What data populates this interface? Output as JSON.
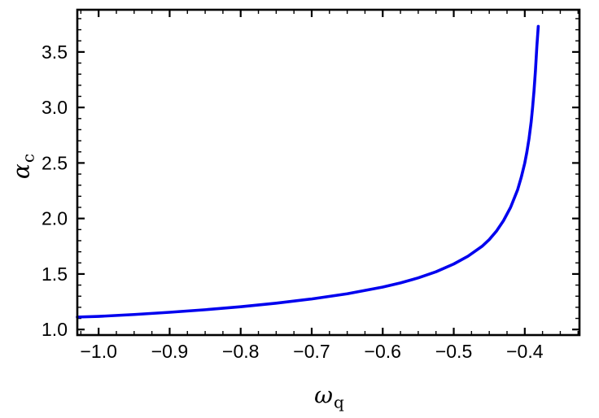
{
  "figure": {
    "background": "#ffffff",
    "frame_color": "#000000",
    "tick_label_color": "#000000"
  },
  "chart_data": {
    "type": "line",
    "title": "",
    "xlabel": {
      "symbol": "ω",
      "subscript": "q"
    },
    "ylabel": {
      "symbol": "α",
      "subscript": "c"
    },
    "xlim": [
      -1.03,
      -0.323
    ],
    "ylim": [
      0.95,
      3.88
    ],
    "grid": false,
    "frame": true,
    "legend": "none",
    "x_ticks": {
      "major": [
        -1.0,
        -0.9,
        -0.8,
        -0.7,
        -0.6,
        -0.5,
        -0.4
      ],
      "labels": [
        "−1.0",
        "−0.9",
        "−0.8",
        "−0.7",
        "−0.6",
        "−0.5",
        "−0.4"
      ],
      "minor_step": 0.025
    },
    "y_ticks": {
      "major": [
        1.0,
        1.5,
        2.0,
        2.5,
        3.0,
        3.5
      ],
      "labels": [
        "1.0",
        "1.5",
        "2.0",
        "2.5",
        "3.0",
        "3.5"
      ],
      "minor_step": 0.1
    },
    "series": [
      {
        "name": "alpha_c_vs_omega_q",
        "color": "#0000EE",
        "width": 3.6,
        "points": [
          [
            -1.03,
            1.112
          ],
          [
            -1.0,
            1.118
          ],
          [
            -0.95,
            1.135
          ],
          [
            -0.9,
            1.155
          ],
          [
            -0.85,
            1.178
          ],
          [
            -0.8,
            1.205
          ],
          [
            -0.75,
            1.237
          ],
          [
            -0.7,
            1.275
          ],
          [
            -0.65,
            1.322
          ],
          [
            -0.6,
            1.382
          ],
          [
            -0.575,
            1.42
          ],
          [
            -0.55,
            1.465
          ],
          [
            -0.525,
            1.52
          ],
          [
            -0.5,
            1.59
          ],
          [
            -0.48,
            1.66
          ],
          [
            -0.46,
            1.75
          ],
          [
            -0.45,
            1.81
          ],
          [
            -0.44,
            1.885
          ],
          [
            -0.43,
            1.98
          ],
          [
            -0.42,
            2.1
          ],
          [
            -0.41,
            2.26
          ],
          [
            -0.405,
            2.37
          ],
          [
            -0.4,
            2.5
          ],
          [
            -0.397,
            2.6
          ],
          [
            -0.394,
            2.72
          ],
          [
            -0.391,
            2.87
          ],
          [
            -0.389,
            3.0
          ],
          [
            -0.387,
            3.15
          ],
          [
            -0.385,
            3.33
          ],
          [
            -0.383,
            3.55
          ],
          [
            -0.381,
            3.73
          ]
        ]
      }
    ]
  }
}
